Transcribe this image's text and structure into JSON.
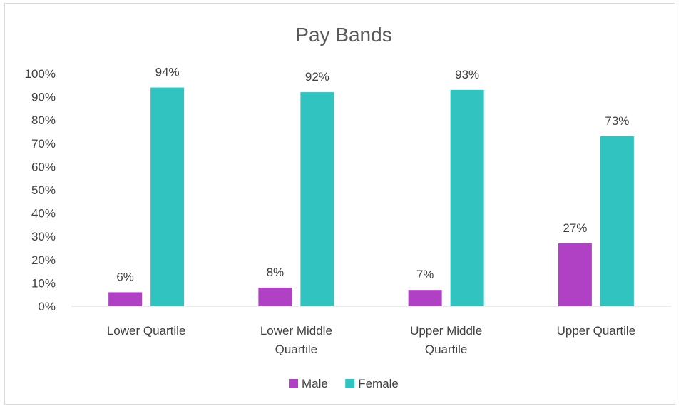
{
  "chart_data": {
    "type": "bar",
    "title": "Pay Bands",
    "xlabel": "",
    "ylabel": "",
    "categories": [
      [
        "Lower Quartile"
      ],
      [
        "Lower Middle",
        "Quartile"
      ],
      [
        "Upper Middle",
        "Quartile"
      ],
      [
        "Upper Quartile"
      ]
    ],
    "series": [
      {
        "name": "Male",
        "color": "#b040c4",
        "values": [
          6,
          8,
          7,
          27
        ]
      },
      {
        "name": "Female",
        "color": "#31c3bf",
        "values": [
          94,
          92,
          93,
          73
        ]
      }
    ],
    "value_format": "percent",
    "ylim": [
      0,
      100
    ],
    "yticks": [
      0,
      10,
      20,
      30,
      40,
      50,
      60,
      70,
      80,
      90,
      100
    ],
    "ytick_labels": [
      "0%",
      "10%",
      "20%",
      "30%",
      "40%",
      "50%",
      "60%",
      "70%",
      "80%",
      "90%",
      "100%"
    ],
    "grid": false,
    "legend": "bottom",
    "data_labels": true
  }
}
